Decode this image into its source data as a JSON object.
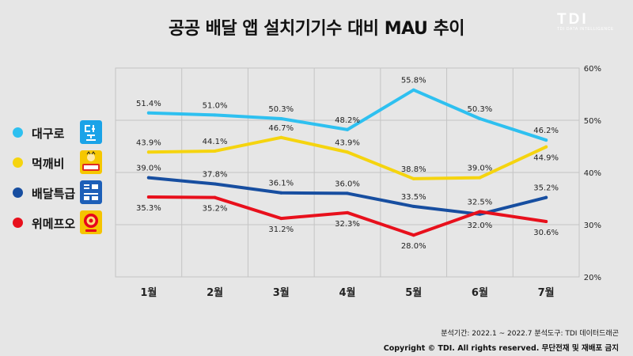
{
  "title": "공공 배달 앱 설치기기수 대비 MAU 추이",
  "logo": {
    "main": "TDI",
    "sub": "TDI DATA INTELLIGENCE"
  },
  "footer": {
    "period": "분석기간: 2022.1 ~ 2022.7    분석도구: TDI 데이터드래곤",
    "copyright": "Copyright © TDI. All rights reserved. 무단전재 및 재배포 금지"
  },
  "legend_icons": [
    {
      "text": "대구로",
      "bg": "#1aa3e8",
      "fg": "#ffffff"
    },
    {
      "text": "먹깨비",
      "bg": "#f6c700",
      "fg": "#222222"
    },
    {
      "text": "배달특급",
      "bg": "#1d5fb8",
      "fg": "#ffffff"
    },
    {
      "text": "위메프오",
      "bg": "#f5c400",
      "fg": "#e8001c"
    }
  ],
  "chart_data": {
    "type": "line",
    "categories": [
      "1월",
      "2월",
      "3월",
      "4월",
      "5월",
      "6월",
      "7월"
    ],
    "y_axis": {
      "min": 20,
      "max": 60,
      "step": 10,
      "position": "right",
      "tick_labels": [
        "20%",
        "30%",
        "40%",
        "50%",
        "60%"
      ]
    },
    "grid": true,
    "legend_position": "left",
    "series": [
      {
        "name": "대구로",
        "color": "#2ec0f0",
        "values": [
          51.4,
          51.0,
          50.3,
          48.2,
          55.8,
          50.3,
          46.2
        ],
        "labels": [
          "51.4%",
          "51.0%",
          "50.3%",
          "48.2%",
          "55.8%",
          "50.3%",
          "46.2%"
        ],
        "label_pos": [
          "above",
          "above",
          "above",
          "above",
          "above",
          "above",
          "above"
        ]
      },
      {
        "name": "먹깨비",
        "color": "#f5d40f",
        "values": [
          43.9,
          44.1,
          46.7,
          43.9,
          38.8,
          39.0,
          44.9
        ],
        "labels": [
          "43.9%",
          "44.1%",
          "46.7%",
          "43.9%",
          "38.8%",
          "39.0%",
          "44.9%"
        ],
        "label_pos": [
          "above",
          "above",
          "above",
          "above",
          "above",
          "above",
          "below"
        ]
      },
      {
        "name": "배달특급",
        "color": "#174ea0",
        "values": [
          39.0,
          37.8,
          36.1,
          36.0,
          33.5,
          32.0,
          35.2
        ],
        "labels": [
          "39.0%",
          "37.8%",
          "36.1%",
          "36.0%",
          "33.5%",
          "32.0%",
          "35.2%"
        ],
        "label_pos": [
          "above",
          "above",
          "above",
          "above",
          "above",
          "below",
          "above"
        ]
      },
      {
        "name": "위메프오",
        "color": "#e8101c",
        "values": [
          35.3,
          35.2,
          31.2,
          32.3,
          28.0,
          32.5,
          30.6
        ],
        "labels": [
          "35.3%",
          "35.2%",
          "31.2%",
          "32.3%",
          "28.0%",
          "32.5%",
          "30.6%"
        ],
        "label_pos": [
          "below",
          "below",
          "below",
          "below",
          "below",
          "above",
          "below"
        ]
      }
    ]
  }
}
